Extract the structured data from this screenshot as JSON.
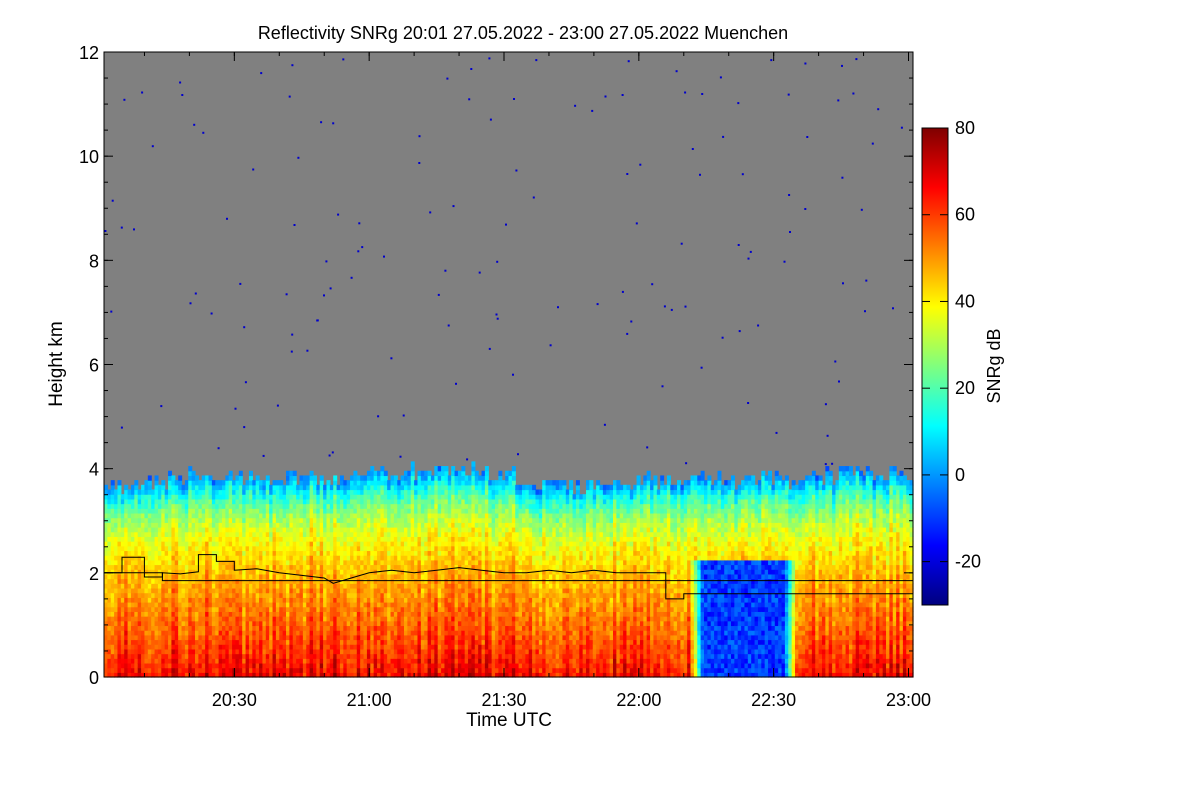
{
  "chart_data": {
    "type": "heatmap",
    "title": "Reflectivity SNRg   20:01 27.05.2022 - 23:00 27.05.2022 Muenchen",
    "xlabel": "Time UTC",
    "ylabel": "Height km",
    "x_range": [
      "20:01",
      "23:01"
    ],
    "y_range": [
      0,
      12
    ],
    "x_ticks": [
      "20:30",
      "21:00",
      "21:30",
      "22:00",
      "22:30",
      "23:00"
    ],
    "y_ticks": [
      0,
      2,
      4,
      6,
      8,
      10,
      12
    ],
    "colorbar": {
      "label": "SNRg dB",
      "range": [
        -30,
        80
      ],
      "ticks": [
        -20,
        0,
        20,
        40,
        60,
        80
      ],
      "colormap": "jet",
      "colors": [
        "#00007f",
        "#0000ff",
        "#007fff",
        "#00ffff",
        "#7fff7f",
        "#ffff00",
        "#ff7f00",
        "#ff0000",
        "#7f0000"
      ]
    },
    "no_signal_color": "#808080",
    "noise_speck_color": "#0000cc",
    "echo_top_km": [
      [
        "20:01",
        3.6
      ],
      [
        "20:10",
        3.7
      ],
      [
        "20:20",
        3.8
      ],
      [
        "20:30",
        3.85
      ],
      [
        "20:40",
        3.75
      ],
      [
        "20:50",
        3.8
      ],
      [
        "21:00",
        3.85
      ],
      [
        "21:10",
        3.9
      ],
      [
        "21:20",
        3.95
      ],
      [
        "21:30",
        3.85
      ],
      [
        "21:40",
        3.6
      ],
      [
        "21:50",
        3.65
      ],
      [
        "22:00",
        3.7
      ],
      [
        "22:10",
        3.7
      ],
      [
        "22:20",
        3.7
      ],
      [
        "22:30",
        3.75
      ],
      [
        "22:40",
        3.8
      ],
      [
        "22:50",
        3.85
      ],
      [
        "23:00",
        3.9
      ]
    ],
    "weak_echo_region": {
      "time": [
        "22:11",
        "22:35"
      ],
      "height_km": [
        0,
        2.2
      ],
      "snr_db_approx": -10
    },
    "lines": [
      {
        "points": [
          [
            "20:01",
            2.0
          ],
          [
            "20:05",
            2.0
          ],
          [
            "20:05",
            2.3
          ],
          [
            "20:10",
            2.3
          ],
          [
            "20:10",
            1.92
          ],
          [
            "20:14",
            1.92
          ],
          [
            "20:14",
            2.0
          ],
          [
            "20:18",
            1.98
          ],
          [
            "20:22",
            2.02
          ],
          [
            "20:22",
            2.35
          ],
          [
            "20:26",
            2.35
          ],
          [
            "20:26",
            2.22
          ],
          [
            "20:30",
            2.22
          ],
          [
            "20:30",
            2.05
          ],
          [
            "20:35",
            2.08
          ],
          [
            "20:40",
            2.0
          ],
          [
            "20:45",
            1.95
          ],
          [
            "20:50",
            1.9
          ],
          [
            "20:52",
            1.8
          ],
          [
            "20:56",
            1.9
          ],
          [
            "21:00",
            2.0
          ],
          [
            "21:05",
            2.05
          ],
          [
            "21:10",
            2.0
          ],
          [
            "21:15",
            2.05
          ],
          [
            "21:20",
            2.1
          ],
          [
            "21:25",
            2.05
          ],
          [
            "21:30",
            2.0
          ],
          [
            "21:35",
            2.0
          ],
          [
            "21:40",
            2.05
          ],
          [
            "21:45",
            2.0
          ],
          [
            "21:50",
            2.05
          ],
          [
            "21:55",
            2.0
          ],
          [
            "22:00",
            2.0
          ],
          [
            "22:06",
            2.0
          ],
          [
            "22:06",
            1.5
          ],
          [
            "22:10",
            1.5
          ],
          [
            "22:10",
            1.6
          ],
          [
            "23:01",
            1.6
          ]
        ]
      },
      {
        "points": [
          [
            "20:01",
            2.0
          ],
          [
            "20:14",
            2.0
          ],
          [
            "20:14",
            1.85
          ],
          [
            "23:01",
            1.85
          ]
        ]
      }
    ]
  }
}
